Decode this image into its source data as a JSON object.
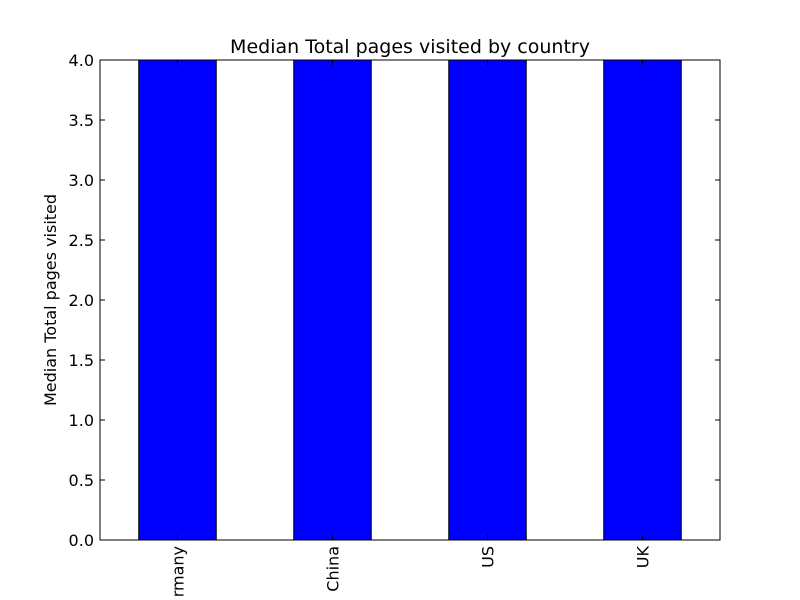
{
  "chart_data": {
    "type": "bar",
    "title": "Median Total pages visited by country",
    "xlabel": "",
    "ylabel": "Median Total pages visited",
    "categories": [
      "Germany",
      "China",
      "US",
      "UK"
    ],
    "category_labels_shown": [
      "rmany",
      "China",
      "US",
      "UK"
    ],
    "values": [
      4,
      4,
      4,
      4
    ],
    "ylim": [
      0,
      4
    ],
    "yticks": [
      "0.0",
      "0.5",
      "1.0",
      "1.5",
      "2.0",
      "2.5",
      "3.0",
      "3.5",
      "4.0"
    ],
    "bar_color": "#0000ff",
    "grid": false,
    "legend": "none"
  }
}
